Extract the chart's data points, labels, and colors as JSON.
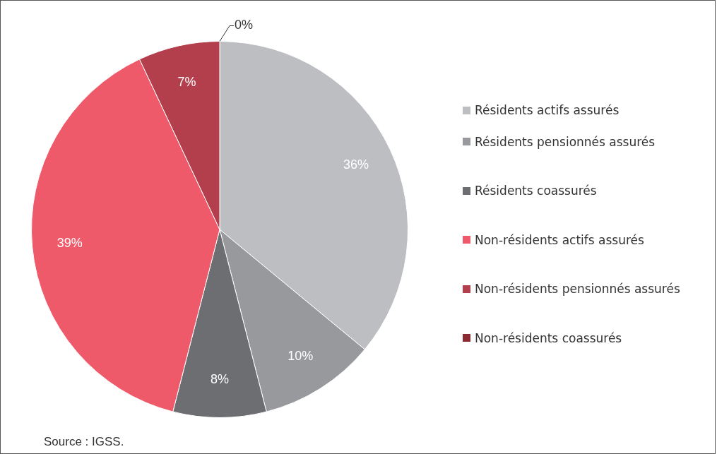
{
  "chart_data": {
    "type": "pie",
    "categories": [
      "Résidents actifs assurés",
      "Résidents pensionnés assurés",
      "Résidents coassurés",
      "Non-résidents actifs assurés",
      "Non-résidents pensionnés assurés",
      "Non-résidents coassurés"
    ],
    "values": [
      36,
      10,
      8,
      39,
      7,
      0
    ],
    "colors": [
      "#bdbec2",
      "#98999d",
      "#6d6e72",
      "#ef5a6a",
      "#b23f4b",
      "#8c2a32"
    ],
    "value_labels": [
      "36%",
      "10%",
      "8%",
      "39%",
      "7%",
      "0%"
    ],
    "legend": "right",
    "annotations": [
      "Source : IGSS."
    ]
  }
}
